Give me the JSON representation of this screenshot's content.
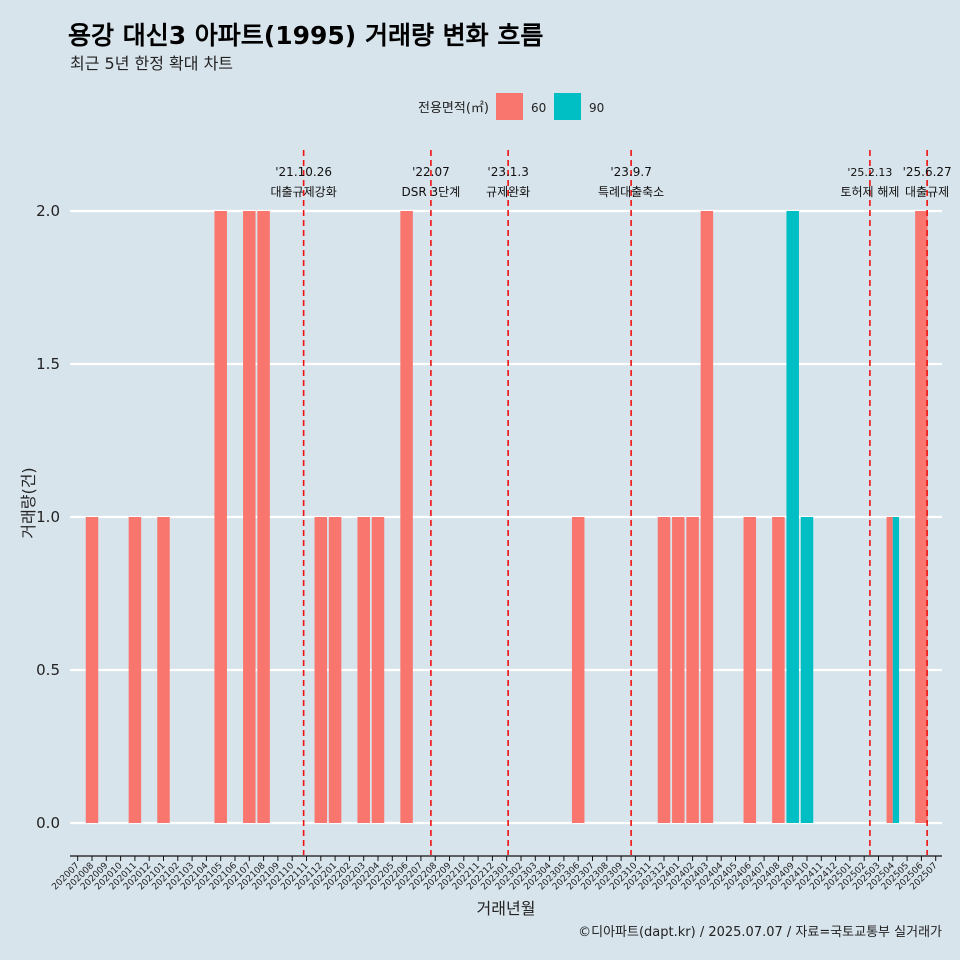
{
  "chart_data": {
    "type": "bar",
    "title": "용강 대신3 아파트(1995) 거래량 변화 흐름",
    "subtitle": "최근 5년 한정 확대 차트",
    "xlabel": "거래년월",
    "ylabel": "거래량(건)",
    "ylim": [
      0,
      2.0
    ],
    "yticks": [
      "0.0",
      "0.5",
      "1.0",
      "1.5",
      "2.0"
    ],
    "grid": true,
    "legend_position": "top",
    "legend": {
      "title": "전용면적(㎡)",
      "items": [
        {
          "label": "60",
          "color": "#F8766D"
        },
        {
          "label": "90",
          "color": "#00BFC4"
        }
      ]
    },
    "categories": [
      "202007",
      "202008",
      "202009",
      "202010",
      "202011",
      "202012",
      "202101",
      "202102",
      "202103",
      "202104",
      "202105",
      "202106",
      "202107",
      "202108",
      "202109",
      "202110",
      "202111",
      "202112",
      "202201",
      "202202",
      "202203",
      "202204",
      "202205",
      "202206",
      "202207",
      "202208",
      "202209",
      "202210",
      "202211",
      "202212",
      "202301",
      "202302",
      "202303",
      "202304",
      "202305",
      "202306",
      "202307",
      "202308",
      "202309",
      "202310",
      "202311",
      "202312",
      "202401",
      "202402",
      "202403",
      "202404",
      "202405",
      "202406",
      "202407",
      "202408",
      "202409",
      "202410",
      "202411",
      "202412",
      "202501",
      "202502",
      "202503",
      "202504",
      "202505",
      "202506",
      "202507"
    ],
    "series": [
      {
        "name": "60",
        "color": "#F8766D",
        "values": [
          0,
          1,
          0,
          0,
          1,
          0,
          1,
          0,
          0,
          0,
          2,
          0,
          2,
          2,
          0,
          0,
          0,
          1,
          1,
          0,
          1,
          1,
          0,
          2,
          0,
          0,
          0,
          0,
          0,
          0,
          0,
          0,
          0,
          0,
          0,
          1,
          0,
          0,
          0,
          0,
          0,
          1,
          1,
          1,
          2,
          0,
          0,
          1,
          0,
          1,
          0,
          0,
          0,
          0,
          0,
          0,
          0,
          1,
          0,
          2,
          0
        ]
      },
      {
        "name": "90",
        "color": "#00BFC4",
        "values": [
          0,
          0,
          0,
          0,
          0,
          0,
          0,
          0,
          0,
          0,
          0,
          0,
          0,
          0,
          0,
          0,
          0,
          0,
          0,
          0,
          0,
          0,
          0,
          0,
          0,
          0,
          0,
          0,
          0,
          0,
          0,
          0,
          0,
          0,
          0,
          0,
          0,
          0,
          0,
          0,
          0,
          0,
          0,
          0,
          0,
          0,
          0,
          0,
          0,
          0,
          2,
          1,
          0,
          0,
          0,
          0,
          0,
          1,
          0,
          0,
          0
        ]
      }
    ],
    "events": [
      {
        "date": "'21.10.26",
        "label": "대출규제강화",
        "month_index": 15.8
      },
      {
        "date": "'22.07",
        "label": "DSR 3단계",
        "month_index": 24.7
      },
      {
        "date": "'23.1.3",
        "label": "규제완화",
        "month_index": 30.1
      },
      {
        "date": "'23.9.7",
        "label": "특례대출축소",
        "month_index": 38.7
      },
      {
        "date": "'25.2.13",
        "label": "토허제 해제",
        "month_index": 55.4
      },
      {
        "date": "'25.6.27",
        "label": "대출규제",
        "month_index": 59.4
      }
    ],
    "caption": "©디아파트(dapt.kr) / 2025.07.07 / 자료=국토교통부 실거래가"
  }
}
